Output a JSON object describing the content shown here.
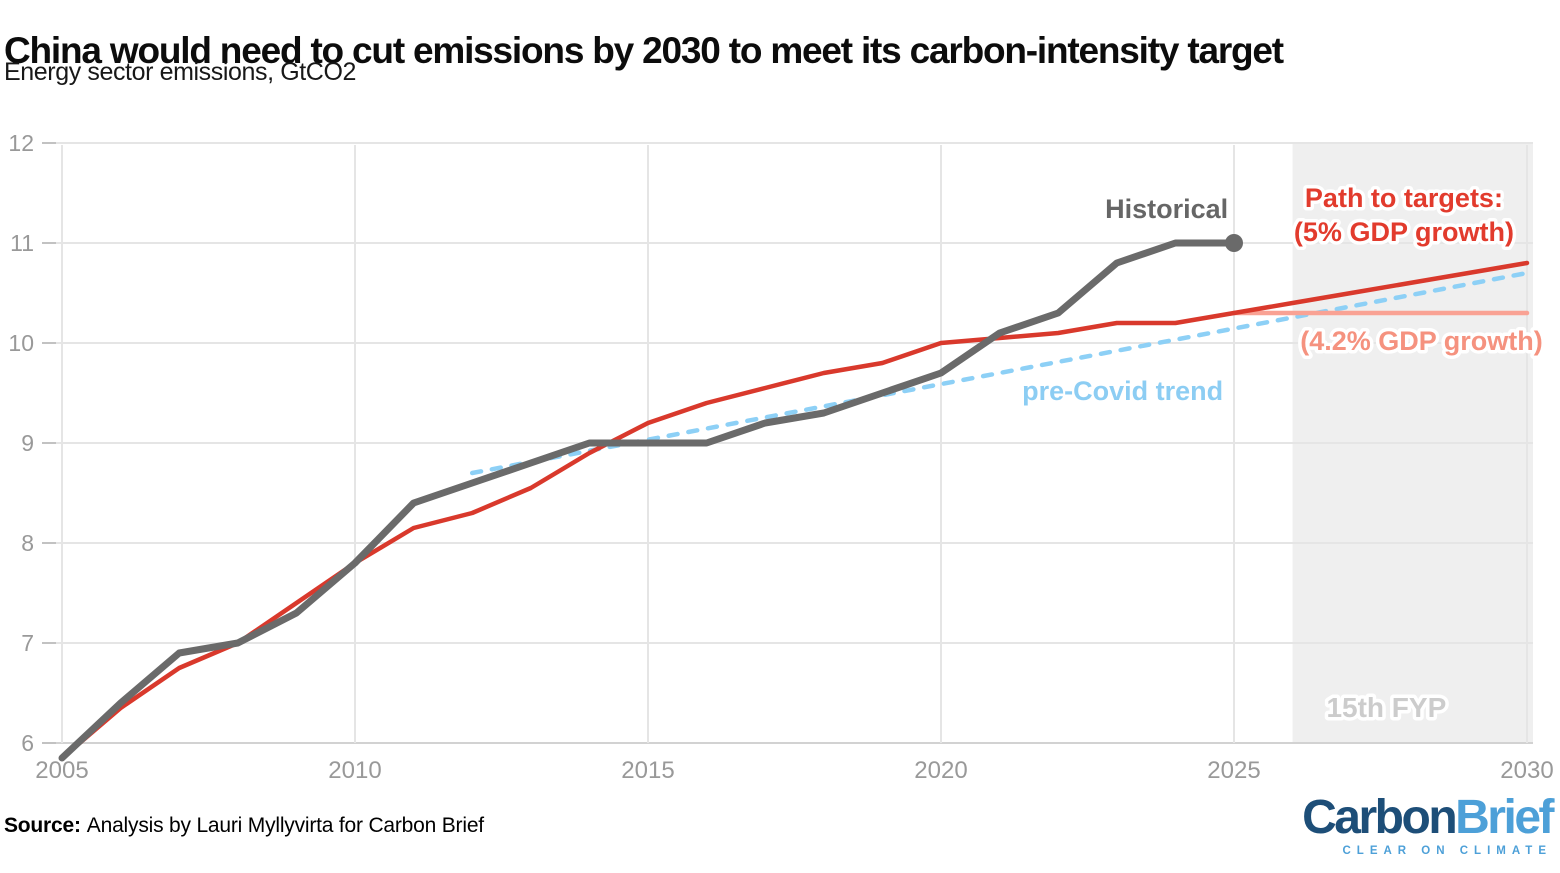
{
  "header": {
    "title": "China would need to cut emissions by 2030 to meet its carbon-intensity target",
    "subtitle": "Energy sector emissions, GtCO2"
  },
  "footer": {
    "source_label": "Source:",
    "source_text": "Analysis by Lauri Myllyvirta for Carbon Brief",
    "logo": {
      "part1": "Carbon",
      "part2": "Brief",
      "tagline": "CLEAR ON CLIMATE",
      "part1_color": "#1d4e78",
      "part2_color": "#4da0d8"
    }
  },
  "chart_data": {
    "type": "line",
    "title": "China would need to cut emissions by 2030 to meet its carbon-intensity target",
    "ylabel": "Energy sector emissions, GtCO2",
    "xlabel": "",
    "xlim": [
      2005,
      2030
    ],
    "ylim": [
      6,
      12
    ],
    "x_ticks": [
      2005,
      2010,
      2015,
      2020,
      2025,
      2030
    ],
    "y_ticks": [
      6,
      7,
      8,
      9,
      10,
      11,
      12
    ],
    "grid": true,
    "legend_position": "inline-annotations",
    "axis_label_color": "#999999",
    "grid_color": "#e5e5e5",
    "shaded_region": {
      "key": "15th-fyp",
      "label": "15th FYP",
      "x_start": 2026,
      "x_end": 2030,
      "fill": "#efefef",
      "label_color": "#cccccc",
      "label_x": 2027.6,
      "label_y": 6.26
    },
    "series": [
      {
        "key": "pre-covid-trend",
        "name": "pre-Covid trend",
        "color": "#8dd0f6",
        "style": "dashed",
        "width": 4.5,
        "end_dot": false,
        "x": [
          2012,
          2030
        ],
        "values": [
          8.7,
          10.7
        ]
      },
      {
        "key": "path-4-2pct",
        "name": "(4.2% GDP growth)",
        "color": "#f9a294",
        "style": "solid",
        "width": 4.5,
        "end_dot": false,
        "x": [
          2025,
          2030
        ],
        "values": [
          10.3,
          10.3
        ]
      },
      {
        "key": "path-5pct",
        "name": "Path to targets: (5% GDP growth)",
        "color": "#d9392c",
        "style": "solid",
        "width": 4.5,
        "end_dot": false,
        "x": [
          2005,
          2006,
          2007,
          2008,
          2009,
          2010,
          2011,
          2012,
          2013,
          2014,
          2015,
          2016,
          2017,
          2018,
          2019,
          2020,
          2021,
          2022,
          2023,
          2024,
          2025,
          2026,
          2027,
          2028,
          2029,
          2030
        ],
        "values": [
          5.85,
          6.35,
          6.75,
          7.0,
          7.4,
          7.8,
          8.15,
          8.3,
          8.55,
          8.9,
          9.2,
          9.4,
          9.55,
          9.7,
          9.8,
          10.0,
          10.05,
          10.1,
          10.2,
          10.2,
          10.3,
          10.4,
          10.5,
          10.6,
          10.7,
          10.8
        ]
      },
      {
        "key": "historical",
        "name": "Historical",
        "color": "#6a6a6a",
        "style": "solid",
        "width": 7,
        "end_dot": true,
        "x": [
          2005,
          2006,
          2007,
          2008,
          2009,
          2010,
          2011,
          2012,
          2013,
          2014,
          2015,
          2016,
          2017,
          2018,
          2019,
          2020,
          2021,
          2022,
          2023,
          2024,
          2025
        ],
        "values": [
          5.85,
          6.4,
          6.9,
          7.0,
          7.3,
          7.8,
          8.4,
          8.6,
          8.8,
          9.0,
          9.0,
          9.0,
          9.2,
          9.3,
          9.5,
          9.7,
          10.1,
          10.3,
          10.8,
          11.0,
          11.0
        ]
      }
    ],
    "annotations": [
      {
        "key": "historical-label",
        "text": "Historical",
        "x": 2023.85,
        "y": 11.25,
        "color": "#666666"
      },
      {
        "key": "path-5pct-label",
        "text": "Path to targets:\n(5% GDP growth)",
        "x": 2027.9,
        "y": 11.36,
        "color": "#e23b2d"
      },
      {
        "key": "path-4-2pct-label",
        "text": "(4.2% GDP growth)",
        "x": 2028.2,
        "y": 9.93,
        "color": "#f5927f"
      },
      {
        "key": "pre-covid-label",
        "text": "pre-Covid trend",
        "x": 2023.1,
        "y": 9.43,
        "color": "#8ccdf3"
      }
    ]
  }
}
